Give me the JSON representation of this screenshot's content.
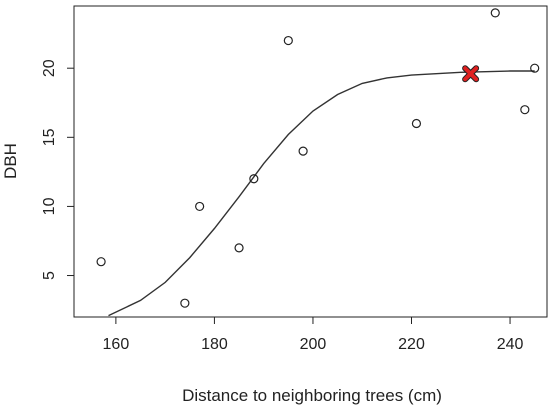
{
  "chart_data": {
    "type": "scatter",
    "title": "",
    "xlabel": "Distance to neighboring trees (cm)",
    "ylabel": "DBH",
    "xlim": [
      151.5,
      247.5
    ],
    "ylim": [
      2,
      24.5
    ],
    "xticks": [
      160,
      180,
      200,
      220,
      240
    ],
    "yticks": [
      5,
      10,
      15,
      20
    ],
    "grid": false,
    "legend": "none",
    "series": [
      {
        "type": "scatter",
        "marker": "open-circle",
        "x": [
          157,
          174,
          177,
          185,
          188,
          195,
          198,
          221,
          237,
          243,
          245
        ],
        "y": [
          6,
          3,
          10,
          7,
          12,
          22,
          14,
          16,
          24,
          17,
          20
        ]
      },
      {
        "type": "line",
        "x": [
          158.5,
          165,
          170,
          175,
          180,
          185,
          190,
          195,
          200,
          205,
          210,
          215,
          220,
          225,
          230,
          235,
          240,
          245
        ],
        "y": [
          2.1,
          3.2,
          4.5,
          6.3,
          8.4,
          10.7,
          13.1,
          15.2,
          16.9,
          18.1,
          18.9,
          19.3,
          19.5,
          19.6,
          19.7,
          19.75,
          19.8,
          19.8
        ]
      },
      {
        "type": "highlight",
        "marker": "x",
        "color": "#e02020",
        "x": [
          232
        ],
        "y": [
          19.6
        ]
      }
    ]
  }
}
